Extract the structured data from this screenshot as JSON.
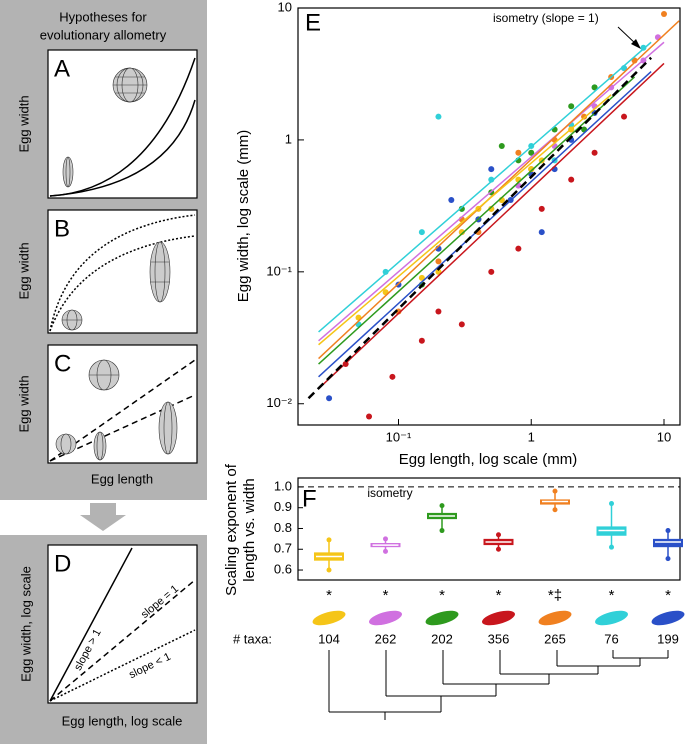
{
  "hypotheses": {
    "title": [
      "Hypotheses for",
      "evolutionary allometry"
    ],
    "panels": [
      {
        "label": "A",
        "ylabel": "Egg width"
      },
      {
        "label": "B",
        "ylabel": "Egg width"
      },
      {
        "label": "C",
        "ylabel": "Egg width"
      }
    ],
    "xlabel": "Egg length",
    "panel_d": {
      "label": "D",
      "ylabel": "Egg width, log scale",
      "xlabel": "Egg length, log scale",
      "slopes": [
        "slope > 1",
        "slope = 1",
        "slope < 1"
      ]
    }
  },
  "chart_data": [
    {
      "type": "scatter",
      "panel_label": "E",
      "xlabel": "Egg length, log scale (mm)",
      "ylabel": "Egg width, log scale (mm)",
      "annotation": "isometry (slope = 1)",
      "log_x": true,
      "log_y": true,
      "xlim": [
        0.0175,
        13.2
      ],
      "ylim": [
        0.0069,
        10
      ],
      "xticks": [
        {
          "value": 0.1,
          "label": "10⁻¹"
        },
        1,
        10
      ],
      "yticks": [
        {
          "value": 0.01,
          "label": "10⁻²"
        },
        {
          "value": 0.1,
          "label": "10⁻¹"
        },
        1,
        10
      ],
      "isometry_line": {
        "x": [
          0.021,
          8
        ],
        "values": [
          0.011,
          4.2
        ]
      },
      "series": [
        {
          "color": "#c8161d",
          "x": [
            0.06,
            0.09,
            0.15,
            0.2,
            0.3,
            0.5,
            0.8,
            1.2,
            2,
            3,
            5,
            0.04
          ],
          "values": [
            0.008,
            0.016,
            0.03,
            0.05,
            0.04,
            0.1,
            0.15,
            0.3,
            0.5,
            0.8,
            1.5,
            0.02
          ],
          "fit_x": [
            0.025,
            10
          ],
          "fit_values": [
            0.013,
            3.8
          ]
        },
        {
          "color": "#d070e0",
          "x": [
            0.3,
            0.5,
            0.8,
            1,
            1.5,
            2,
            3,
            4,
            5,
            7,
            9,
            0.2
          ],
          "values": [
            0.2,
            0.3,
            0.45,
            0.6,
            0.9,
            1.2,
            1.8,
            2.5,
            3.5,
            4,
            6,
            0.15
          ],
          "fit_x": [
            0.025,
            10
          ],
          "fit_values": [
            0.03,
            5.5
          ]
        },
        {
          "color": "#30d0d8",
          "x": [
            0.08,
            0.15,
            0.3,
            0.5,
            1,
            2,
            3,
            5,
            7,
            0.05,
            0.2,
            1.5
          ],
          "values": [
            0.1,
            0.2,
            0.3,
            0.5,
            0.9,
            1.3,
            2.5,
            3.5,
            5,
            0.04,
            1.5,
            0.7
          ],
          "fit_x": [
            0.025,
            8
          ],
          "fit_values": [
            0.035,
            5.5
          ]
        },
        {
          "color": "#2e9a1e",
          "x": [
            0.2,
            0.3,
            0.5,
            0.8,
            1,
            1.5,
            2,
            3,
            0.15,
            0.4,
            0.6,
            2.5
          ],
          "values": [
            0.15,
            0.3,
            0.4,
            0.7,
            0.8,
            1.2,
            1.8,
            2.5,
            0.08,
            0.25,
            0.9,
            1.2
          ],
          "fit_x": [
            0.025,
            6
          ],
          "fit_values": [
            0.02,
            3
          ]
        },
        {
          "color": "#f08020",
          "x": [
            0.1,
            0.2,
            0.4,
            0.6,
            1,
            1.5,
            2.5,
            4,
            6,
            10,
            0.3,
            0.8
          ],
          "values": [
            0.05,
            0.12,
            0.2,
            0.35,
            0.6,
            1,
            1.5,
            3,
            4,
            9,
            0.25,
            0.8
          ],
          "fit_x": [
            0.025,
            13
          ],
          "fit_values": [
            0.022,
            8
          ]
        },
        {
          "color": "#2a50c8",
          "x": [
            0.03,
            0.1,
            0.2,
            0.4,
            0.7,
            1,
            1.5,
            2,
            3,
            0.5,
            0.25,
            1.2
          ],
          "values": [
            0.011,
            0.08,
            0.15,
            0.25,
            0.35,
            0.55,
            0.6,
            1,
            1.6,
            0.6,
            0.35,
            0.2
          ],
          "fit_x": [
            0.025,
            8
          ],
          "fit_values": [
            0.016,
            3.3
          ]
        },
        {
          "color": "#f5c518",
          "x": [
            0.05,
            0.08,
            0.15,
            0.3,
            0.5,
            0.8,
            1.2,
            2,
            0.2,
            0.4,
            1,
            0.6
          ],
          "values": [
            0.045,
            0.07,
            0.09,
            0.2,
            0.3,
            0.5,
            0.7,
            1.2,
            0.1,
            0.3,
            0.6,
            0.35
          ],
          "fit_x": [
            0.025,
            4
          ],
          "fit_values": [
            0.028,
            2.2
          ]
        }
      ]
    },
    {
      "type": "box",
      "panel_label": "F",
      "ylabel": [
        "Scaling exponent of",
        "length vs. width"
      ],
      "ylim": [
        0.552,
        1.043
      ],
      "yticks": [
        0.6,
        0.7,
        0.8,
        0.9,
        {
          "value": 1.0,
          "label": "1.0"
        }
      ],
      "reference_line": {
        "value": 1.0,
        "label": "isometry"
      },
      "taxa_label": "# taxa:",
      "boxes": [
        {
          "color": "#f5c518",
          "min": 0.6,
          "q1": 0.645,
          "median": 0.665,
          "q3": 0.685,
          "max": 0.745,
          "n_taxa": 104,
          "significance": "*"
        },
        {
          "color": "#d070e0",
          "min": 0.69,
          "q1": 0.71,
          "median": 0.72,
          "q3": 0.73,
          "max": 0.75,
          "n_taxa": 262,
          "significance": "*"
        },
        {
          "color": "#2e9a1e",
          "min": 0.79,
          "q1": 0.845,
          "median": 0.86,
          "q3": 0.875,
          "max": 0.91,
          "n_taxa": 202,
          "significance": "*"
        },
        {
          "color": "#c8161d",
          "min": 0.7,
          "q1": 0.72,
          "median": 0.735,
          "q3": 0.75,
          "max": 0.77,
          "n_taxa": 356,
          "significance": "*"
        },
        {
          "color": "#f08020",
          "min": 0.89,
          "q1": 0.915,
          "median": 0.93,
          "q3": 0.94,
          "max": 0.98,
          "n_taxa": 265,
          "significance": "*‡"
        },
        {
          "color": "#30d0d8",
          "min": 0.71,
          "q1": 0.765,
          "median": 0.79,
          "q3": 0.81,
          "max": 0.92,
          "n_taxa": 76,
          "significance": "*"
        },
        {
          "color": "#2a50c8",
          "min": 0.655,
          "q1": 0.71,
          "median": 0.735,
          "q3": 0.75,
          "max": 0.79,
          "n_taxa": 199,
          "significance": "*"
        }
      ]
    }
  ]
}
